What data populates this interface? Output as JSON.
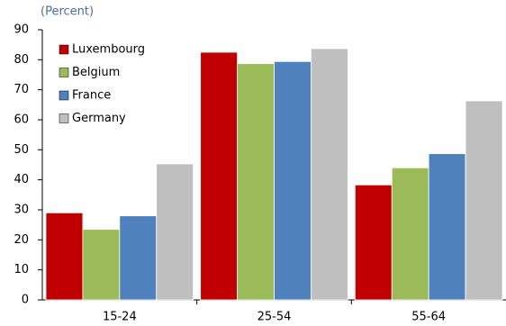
{
  "chart_data": {
    "type": "bar",
    "subtitle": "(Percent)",
    "categories": [
      "15-24",
      "25-54",
      "55-64"
    ],
    "series": [
      {
        "name": "Luxembourg",
        "color": "#c00000",
        "values": [
          29,
          82.5,
          38.3
        ]
      },
      {
        "name": "Belgium",
        "color": "#9bbb59",
        "values": [
          23.5,
          78.7,
          44
        ]
      },
      {
        "name": "France",
        "color": "#4f81bd",
        "values": [
          28,
          79.4,
          48.7
        ]
      },
      {
        "name": "Germany",
        "color": "#bfbfbf",
        "values": [
          45.3,
          83.7,
          66.3
        ]
      }
    ],
    "ylim": [
      0,
      90
    ],
    "yticks": [
      0,
      10,
      20,
      30,
      40,
      50,
      60,
      70,
      80,
      90
    ],
    "grid": false,
    "legend": "top-left"
  }
}
